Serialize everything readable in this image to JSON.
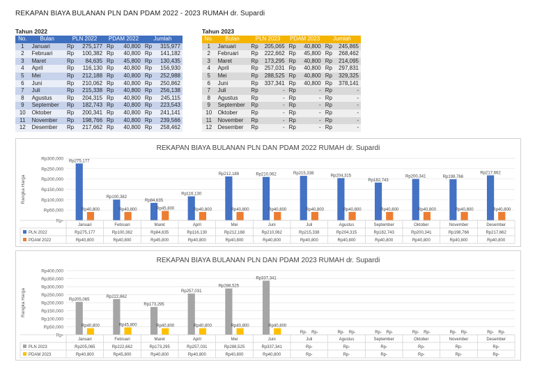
{
  "page_title": "REKAPAN BIAYA BULANAN PLN DAN PDAM 2022 - 2023 RUMAH dr. Supardi",
  "table_2022": {
    "caption": "Tahun 2022",
    "headers": [
      "No.",
      "Bulan",
      "PLN 2022",
      "PDAM 2022",
      "Jumlah"
    ],
    "rows": [
      {
        "no": "1",
        "bulan": "Januari",
        "pln": "275,177",
        "pdam": "40,800",
        "jumlah": "315,977"
      },
      {
        "no": "2",
        "bulan": "Februari",
        "pln": "100,382",
        "pdam": "40,800",
        "jumlah": "141,182"
      },
      {
        "no": "3",
        "bulan": "Maret",
        "pln": "84,635",
        "pdam": "45,800",
        "jumlah": "130,435"
      },
      {
        "no": "4",
        "bulan": "April",
        "pln": "116,130",
        "pdam": "40,800",
        "jumlah": "156,930"
      },
      {
        "no": "5",
        "bulan": "Mei",
        "pln": "212,188",
        "pdam": "40,800",
        "jumlah": "252,988"
      },
      {
        "no": "6",
        "bulan": "Juni",
        "pln": "210,062",
        "pdam": "40,800",
        "jumlah": "250,862"
      },
      {
        "no": "7",
        "bulan": "Juli",
        "pln": "215,338",
        "pdam": "40,800",
        "jumlah": "256,138"
      },
      {
        "no": "8",
        "bulan": "Agustus",
        "pln": "204,315",
        "pdam": "40,800",
        "jumlah": "245,115"
      },
      {
        "no": "9",
        "bulan": "September",
        "pln": "182,743",
        "pdam": "40,800",
        "jumlah": "223,543"
      },
      {
        "no": "10",
        "bulan": "Oktober",
        "pln": "200,341",
        "pdam": "40,800",
        "jumlah": "241,141"
      },
      {
        "no": "11",
        "bulan": "November",
        "pln": "198,766",
        "pdam": "40,800",
        "jumlah": "239,566"
      },
      {
        "no": "12",
        "bulan": "Desember",
        "pln": "217,662",
        "pdam": "40,800",
        "jumlah": "258,462"
      }
    ]
  },
  "table_2023": {
    "caption": "Tahun 2023",
    "headers": [
      "No.",
      "Bulan",
      "PLN 2023",
      "PDAM 2023",
      "Jumlah"
    ],
    "rows": [
      {
        "no": "1",
        "bulan": "Januari",
        "pln": "205,065",
        "pdam": "40,800",
        "jumlah": "245,865"
      },
      {
        "no": "2",
        "bulan": "Februari",
        "pln": "222,662",
        "pdam": "45,800",
        "jumlah": "268,462"
      },
      {
        "no": "3",
        "bulan": "Maret",
        "pln": "173,295",
        "pdam": "40,800",
        "jumlah": "214,095"
      },
      {
        "no": "4",
        "bulan": "April",
        "pln": "257,031",
        "pdam": "40,800",
        "jumlah": "297,831"
      },
      {
        "no": "5",
        "bulan": "Mei",
        "pln": "288,525",
        "pdam": "40,800",
        "jumlah": "329,325"
      },
      {
        "no": "6",
        "bulan": "Juni",
        "pln": "337,341",
        "pdam": "40,800",
        "jumlah": "378,141"
      },
      {
        "no": "7",
        "bulan": "Juli",
        "pln": "-",
        "pdam": "-",
        "jumlah": "-"
      },
      {
        "no": "8",
        "bulan": "Agustus",
        "pln": "-",
        "pdam": "-",
        "jumlah": "-"
      },
      {
        "no": "9",
        "bulan": "September",
        "pln": "-",
        "pdam": "-",
        "jumlah": "-"
      },
      {
        "no": "10",
        "bulan": "Oktober",
        "pln": "-",
        "pdam": "-",
        "jumlah": "-"
      },
      {
        "no": "11",
        "bulan": "November",
        "pln": "-",
        "pdam": "-",
        "jumlah": "-"
      },
      {
        "no": "12",
        "bulan": "Desember",
        "pln": "-",
        "pdam": "-",
        "jumlah": "-"
      }
    ]
  },
  "currency": "Rp",
  "colors": {
    "pln2022": "#4472c4",
    "pdam2022": "#ed7d31",
    "pln2023": "#a5a5a5",
    "pdam2023": "#ffc000"
  },
  "chart_data": [
    {
      "type": "bar",
      "title": "REKAPAN BIAYA BULANAN PLN DAN PDAM 2022 RUMAH dr. Supardi",
      "ylabel": "Rangka Harga",
      "ylim": [
        0,
        300000
      ],
      "yticks": [
        0,
        50000,
        100000,
        150000,
        200000,
        250000,
        300000
      ],
      "ytick_labels": [
        "Rp-",
        "Rp50,000",
        "Rp100,000",
        "Rp150,000",
        "Rp200,000",
        "Rp250,000",
        "Rp300,000"
      ],
      "categories": [
        "Januari",
        "Februari",
        "Maret",
        "April",
        "Mei",
        "Juni",
        "Juli",
        "Agustus",
        "September",
        "Oktober",
        "November",
        "Desember"
      ],
      "series": [
        {
          "name": "PLN 2022",
          "color": "#4472c4",
          "values": [
            275177,
            100382,
            84635,
            116130,
            212188,
            210062,
            215338,
            204315,
            182743,
            200341,
            198766,
            217662
          ],
          "labels": [
            "Rp275,177",
            "Rp100,382",
            "Rp84,635",
            "Rp116,130",
            "Rp212,188",
            "Rp210,062",
            "Rp215,338",
            "Rp204,315",
            "Rp182,743",
            "Rp200,341",
            "Rp198,766",
            "Rp217,662"
          ]
        },
        {
          "name": "PDAM 2022",
          "color": "#ed7d31",
          "values": [
            40800,
            40800,
            45800,
            40800,
            40800,
            40800,
            40800,
            40800,
            40800,
            40800,
            40800,
            40800
          ],
          "labels": [
            "Rp40,800",
            "Rp40,800",
            "Rp45,800",
            "Rp40,800",
            "Rp40,800",
            "Rp40,800",
            "Rp40,800",
            "Rp40,800",
            "Rp40,800",
            "Rp40,800",
            "Rp40,800",
            "Rp40,800"
          ]
        }
      ]
    },
    {
      "type": "bar",
      "title": "REKAPAN BIAYA BULANAN PLN DAN PDAM 2023 RUMAH dr. Supardi",
      "ylabel": "Rangka Harga",
      "ylim": [
        0,
        400000
      ],
      "yticks": [
        0,
        50000,
        100000,
        150000,
        200000,
        250000,
        300000,
        350000,
        400000
      ],
      "ytick_labels": [
        "Rp-",
        "Rp50,000",
        "Rp100,000",
        "Rp150,000",
        "Rp200,000",
        "Rp250,000",
        "Rp300,000",
        "Rp350,000",
        "Rp400,000"
      ],
      "categories": [
        "Januari",
        "Februari",
        "Maret",
        "April",
        "Mei",
        "Juni",
        "Juli",
        "Agustus",
        "September",
        "Oktober",
        "November",
        "Desember"
      ],
      "series": [
        {
          "name": "PLN 2023",
          "color": "#a5a5a5",
          "values": [
            205065,
            222662,
            173295,
            257031,
            288525,
            337341,
            0,
            0,
            0,
            0,
            0,
            0
          ],
          "labels": [
            "Rp205,065",
            "Rp222,662",
            "Rp173,295",
            "Rp257,031",
            "Rp288,525",
            "Rp337,341",
            "Rp-",
            "Rp-",
            "Rp-",
            "Rp-",
            "Rp-",
            "Rp-"
          ]
        },
        {
          "name": "PDAM 2023",
          "color": "#ffc000",
          "values": [
            40800,
            45800,
            40800,
            40800,
            40800,
            40800,
            0,
            0,
            0,
            0,
            0,
            0
          ],
          "labels": [
            "Rp40,800",
            "Rp45,800",
            "Rp40,800",
            "Rp40,800",
            "Rp40,800",
            "Rp40,800",
            "Rp-",
            "Rp-",
            "Rp-",
            "Rp-",
            "Rp-",
            "Rp-"
          ]
        }
      ]
    }
  ]
}
